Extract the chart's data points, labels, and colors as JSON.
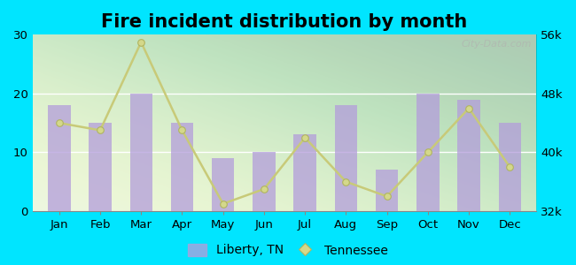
{
  "title": "Fire incident distribution by month",
  "months": [
    "Jan",
    "Feb",
    "Mar",
    "Apr",
    "May",
    "Jun",
    "Jul",
    "Aug",
    "Sep",
    "Oct",
    "Nov",
    "Dec"
  ],
  "liberty_tn": [
    18,
    15,
    20,
    15,
    9,
    10,
    13,
    18,
    7,
    20,
    19,
    15
  ],
  "tennessee_yk": [
    44000,
    43000,
    55000,
    43000,
    33000,
    35000,
    42000,
    36000,
    34000,
    40000,
    46000,
    38000
  ],
  "bar_color": "#b39ddb",
  "bar_alpha": 0.75,
  "line_color": "#c8ca78",
  "line_marker": "o",
  "line_marker_face": "#d4d88a",
  "line_marker_edge": "#b0b460",
  "background_color": "#00e5ff",
  "plot_bg_color": "#e8f5e0",
  "ylim_left": [
    0,
    30
  ],
  "ylim_right": [
    32000,
    56000
  ],
  "yticks_left": [
    0,
    10,
    20,
    30
  ],
  "yticks_right": [
    32000,
    40000,
    48000,
    56000
  ],
  "ytick_labels_right": [
    "32k",
    "40k",
    "48k",
    "56k"
  ],
  "title_fontsize": 15,
  "axis_fontsize": 9.5,
  "legend_fontsize": 10,
  "watermark_text": "City-Data.com"
}
